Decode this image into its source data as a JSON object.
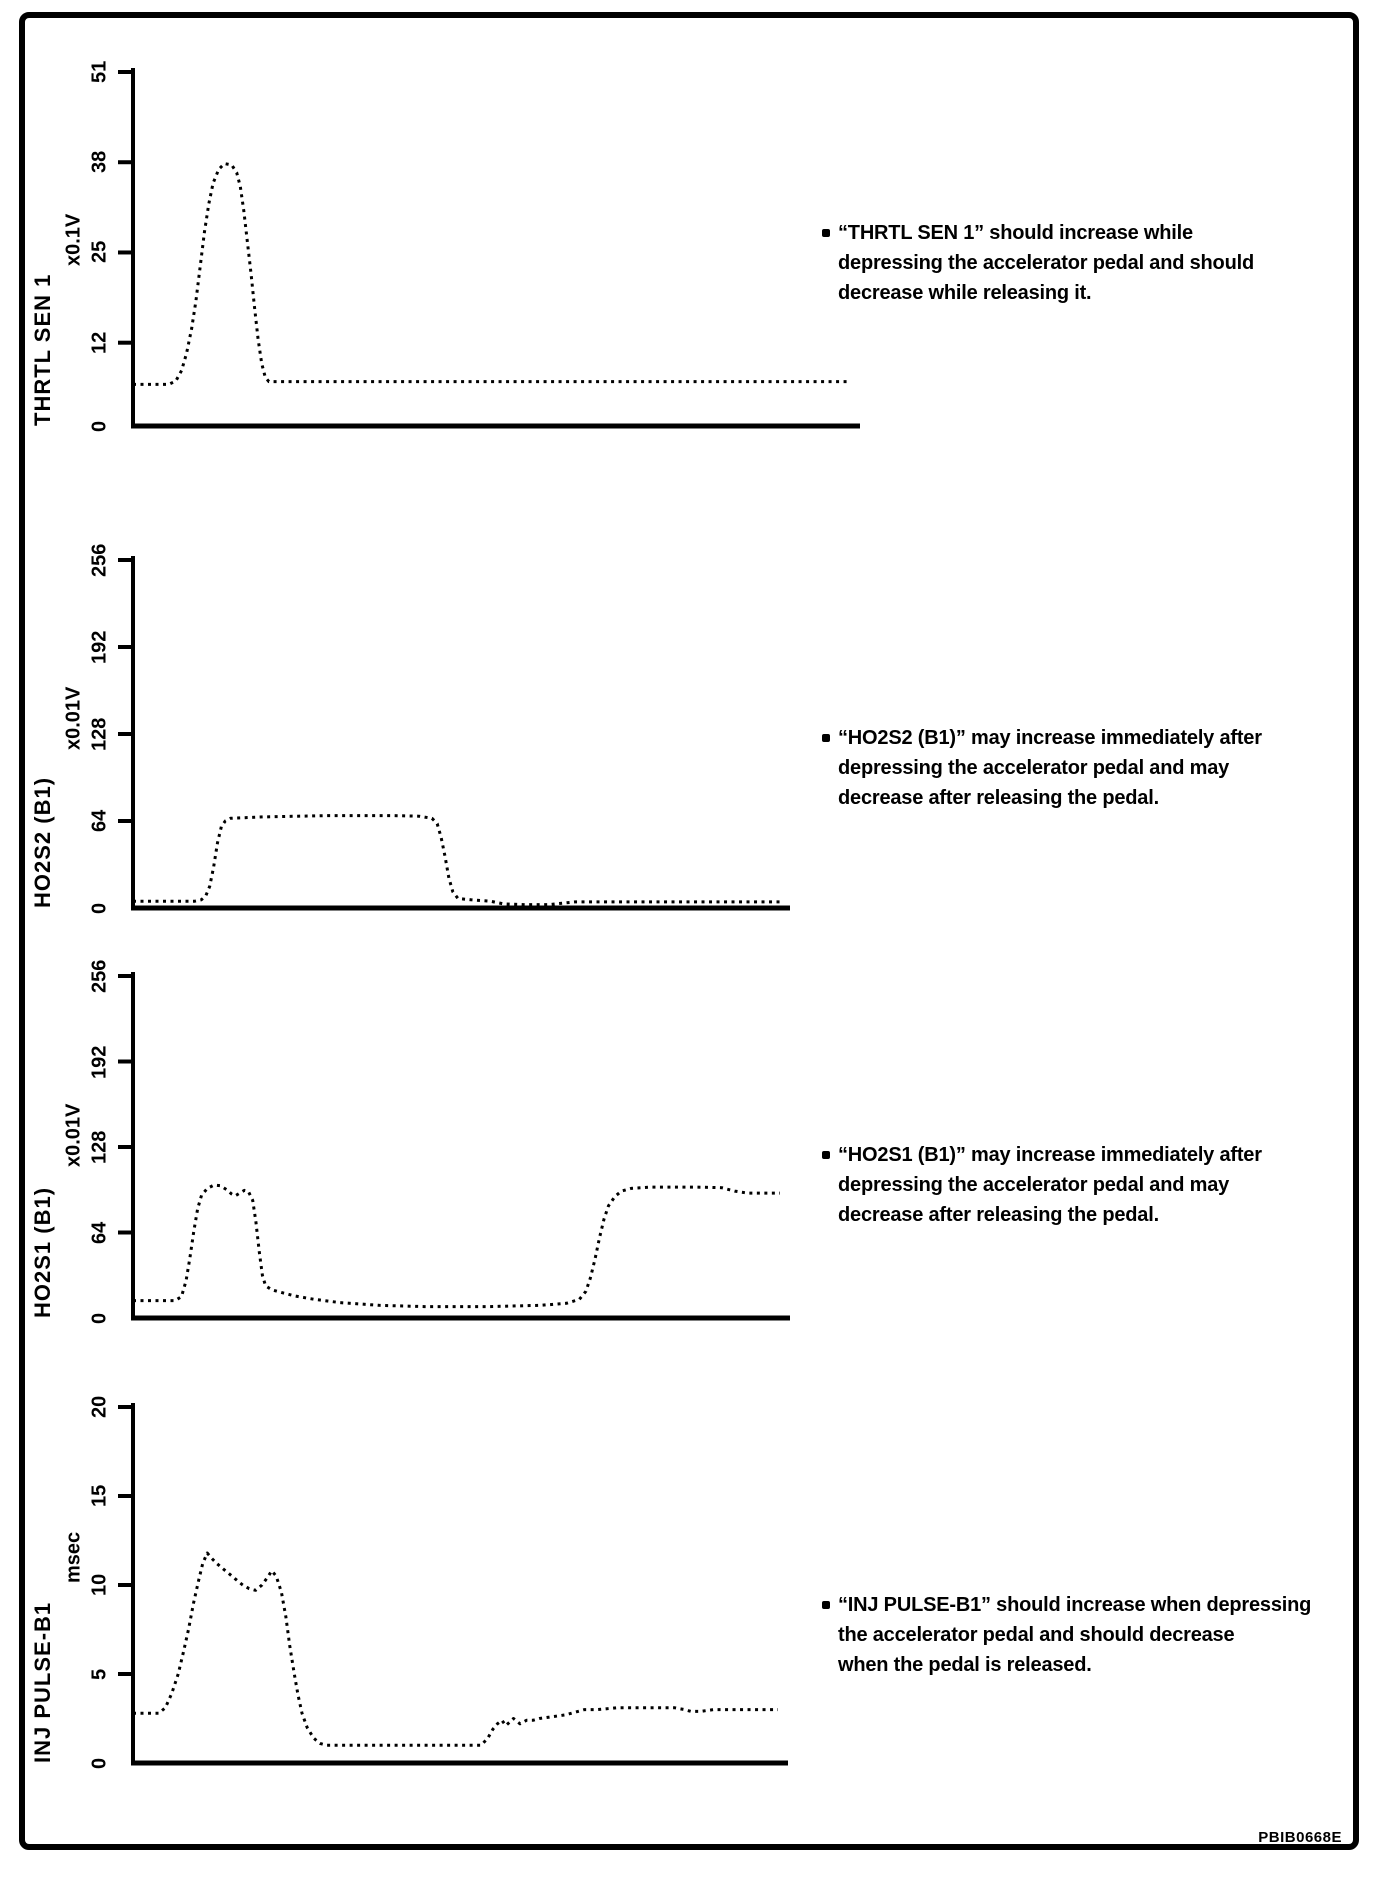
{
  "page": {
    "background": "#ffffff",
    "ink_color": "#000000",
    "code_label": "PBIB0668E"
  },
  "chart_data": [
    {
      "type": "scatter",
      "title": "THRTL SEN 1",
      "ylabel": "THRTL SEN 1",
      "y_unit": "x0.1V",
      "y_ticks": [
        0,
        12,
        25,
        38,
        51
      ],
      "ylim": [
        0,
        51
      ],
      "grid": false,
      "note_lines": [
        "“THRTL SEN 1” should increase while",
        "depressing the accelerator pedal and should",
        "decrease while releasing it."
      ],
      "points": [
        [
          0,
          6
        ],
        [
          0.05,
          6
        ],
        [
          0.06,
          6.5
        ],
        [
          0.068,
          8
        ],
        [
          0.075,
          10.5
        ],
        [
          0.082,
          14
        ],
        [
          0.088,
          18
        ],
        [
          0.094,
          23
        ],
        [
          0.1,
          28
        ],
        [
          0.106,
          32
        ],
        [
          0.112,
          35
        ],
        [
          0.12,
          37
        ],
        [
          0.128,
          37.8
        ],
        [
          0.138,
          37.6
        ],
        [
          0.145,
          36.5
        ],
        [
          0.15,
          34.5
        ],
        [
          0.155,
          31
        ],
        [
          0.16,
          26.5
        ],
        [
          0.165,
          22
        ],
        [
          0.17,
          17
        ],
        [
          0.175,
          12.5
        ],
        [
          0.18,
          9
        ],
        [
          0.185,
          7
        ],
        [
          0.19,
          6.4
        ],
        [
          0.25,
          6.4
        ],
        [
          1,
          6.4
        ]
      ]
    },
    {
      "type": "scatter",
      "title": "HO2S2 (B1)",
      "ylabel": "HO2S2 (B1)",
      "y_unit": "x0.01V",
      "y_ticks": [
        0,
        64,
        128,
        192,
        256
      ],
      "ylim": [
        0,
        256
      ],
      "grid": false,
      "note_lines": [
        "“HO2S2 (B1)” may increase immediately after",
        "depressing the accelerator pedal and may",
        "decrease after releasing the pedal."
      ],
      "points": [
        [
          0,
          5
        ],
        [
          0.095,
          5
        ],
        [
          0.105,
          6
        ],
        [
          0.112,
          9
        ],
        [
          0.118,
          16
        ],
        [
          0.124,
          30
        ],
        [
          0.13,
          48
        ],
        [
          0.136,
          60
        ],
        [
          0.142,
          64
        ],
        [
          0.15,
          66
        ],
        [
          0.2,
          67
        ],
        [
          0.3,
          68
        ],
        [
          0.4,
          68
        ],
        [
          0.44,
          67.5
        ],
        [
          0.46,
          66
        ],
        [
          0.468,
          62
        ],
        [
          0.474,
          52
        ],
        [
          0.48,
          38
        ],
        [
          0.486,
          22
        ],
        [
          0.492,
          12
        ],
        [
          0.5,
          7
        ],
        [
          0.52,
          6
        ],
        [
          0.55,
          5
        ],
        [
          0.57,
          3
        ],
        [
          0.6,
          2.5
        ],
        [
          0.64,
          2.5
        ],
        [
          0.66,
          3.5
        ],
        [
          0.68,
          4.5
        ],
        [
          1,
          4.5
        ]
      ]
    },
    {
      "type": "scatter",
      "title": "HO2S1 (B1)",
      "ylabel": "HO2S1 (B1)",
      "y_unit": "x0.01V",
      "y_ticks": [
        0,
        64,
        128,
        192,
        256
      ],
      "ylim": [
        0,
        256
      ],
      "grid": false,
      "note_lines": [
        "“HO2S1 (B1)” may increase immediately after",
        "depressing the accelerator pedal and may",
        "decrease after releasing the pedal."
      ],
      "points": [
        [
          0,
          13
        ],
        [
          0.065,
          13
        ],
        [
          0.075,
          16
        ],
        [
          0.082,
          28
        ],
        [
          0.088,
          45
        ],
        [
          0.094,
          65
        ],
        [
          0.1,
          82
        ],
        [
          0.106,
          92
        ],
        [
          0.115,
          97
        ],
        [
          0.125,
          99.5
        ],
        [
          0.135,
          99
        ],
        [
          0.145,
          96
        ],
        [
          0.152,
          93
        ],
        [
          0.158,
          91.5
        ],
        [
          0.165,
          93.5
        ],
        [
          0.172,
          95.5
        ],
        [
          0.178,
          95
        ],
        [
          0.185,
          88
        ],
        [
          0.19,
          72
        ],
        [
          0.195,
          50
        ],
        [
          0.2,
          32
        ],
        [
          0.205,
          24
        ],
        [
          0.215,
          21
        ],
        [
          0.23,
          19
        ],
        [
          0.25,
          16.5
        ],
        [
          0.28,
          14
        ],
        [
          0.32,
          11.5
        ],
        [
          0.38,
          9.5
        ],
        [
          0.45,
          8.5
        ],
        [
          0.55,
          8.5
        ],
        [
          0.63,
          9.5
        ],
        [
          0.67,
          11
        ],
        [
          0.69,
          14
        ],
        [
          0.7,
          20
        ],
        [
          0.707,
          30
        ],
        [
          0.714,
          44
        ],
        [
          0.721,
          60
        ],
        [
          0.728,
          74
        ],
        [
          0.735,
          84
        ],
        [
          0.745,
          91
        ],
        [
          0.755,
          95
        ],
        [
          0.77,
          97
        ],
        [
          0.8,
          98
        ],
        [
          0.87,
          98
        ],
        [
          0.91,
          97.5
        ],
        [
          0.93,
          95
        ],
        [
          0.95,
          93.5
        ],
        [
          1,
          93.5
        ]
      ]
    },
    {
      "type": "scatter",
      "title": "INJ PULSE-B1",
      "ylabel": "INJ PULSE-B1",
      "y_unit": "msec",
      "y_ticks": [
        0,
        5,
        10,
        15,
        20
      ],
      "ylim": [
        0,
        20
      ],
      "grid": false,
      "note_lines": [
        "“INJ PULSE-B1” should increase when depressing",
        "the accelerator pedal and should decrease",
        "when the pedal is released."
      ],
      "points": [
        [
          0,
          2.8
        ],
        [
          0.04,
          2.8
        ],
        [
          0.05,
          3.1
        ],
        [
          0.06,
          3.9
        ],
        [
          0.07,
          5
        ],
        [
          0.078,
          6.2
        ],
        [
          0.086,
          7.5
        ],
        [
          0.094,
          9
        ],
        [
          0.102,
          10.3
        ],
        [
          0.108,
          11.2
        ],
        [
          0.115,
          11.8
        ],
        [
          0.122,
          11.5
        ],
        [
          0.13,
          11.2
        ],
        [
          0.14,
          10.9
        ],
        [
          0.15,
          10.6
        ],
        [
          0.16,
          10.3
        ],
        [
          0.17,
          10
        ],
        [
          0.18,
          9.8
        ],
        [
          0.19,
          9.7
        ],
        [
          0.2,
          10
        ],
        [
          0.21,
          10.5
        ],
        [
          0.215,
          10.8
        ],
        [
          0.222,
          10.5
        ],
        [
          0.23,
          9.6
        ],
        [
          0.237,
          8.2
        ],
        [
          0.243,
          6.6
        ],
        [
          0.25,
          5
        ],
        [
          0.256,
          3.8
        ],
        [
          0.262,
          2.8
        ],
        [
          0.27,
          2
        ],
        [
          0.28,
          1.4
        ],
        [
          0.29,
          1.1
        ],
        [
          0.3,
          1
        ],
        [
          0.54,
          1
        ],
        [
          0.55,
          1.4
        ],
        [
          0.558,
          1.9
        ],
        [
          0.565,
          2.2
        ],
        [
          0.572,
          2.4
        ],
        [
          0.578,
          2.1
        ],
        [
          0.584,
          2.3
        ],
        [
          0.59,
          2.5
        ],
        [
          0.6,
          2.2
        ],
        [
          0.61,
          2.4
        ],
        [
          0.62,
          2.4
        ],
        [
          0.63,
          2.5
        ],
        [
          0.65,
          2.6
        ],
        [
          0.67,
          2.7
        ],
        [
          0.69,
          2.9
        ],
        [
          0.7,
          3
        ],
        [
          0.72,
          3
        ],
        [
          0.75,
          3.1
        ],
        [
          0.8,
          3.1
        ],
        [
          0.84,
          3.1
        ],
        [
          0.855,
          3
        ],
        [
          0.865,
          2.9
        ],
        [
          0.88,
          2.9
        ],
        [
          0.9,
          3
        ],
        [
          0.94,
          3
        ],
        [
          1,
          3
        ]
      ]
    }
  ]
}
